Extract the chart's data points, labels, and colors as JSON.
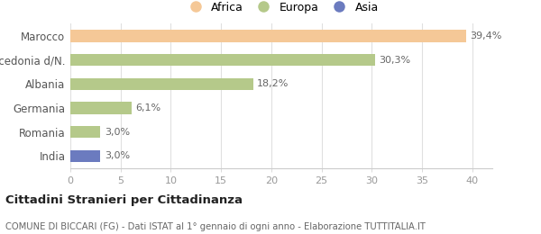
{
  "categories": [
    "India",
    "Romania",
    "Germania",
    "Albania",
    "Macedonia d/N.",
    "Marocco"
  ],
  "values": [
    3.0,
    3.0,
    6.1,
    18.2,
    30.3,
    39.4
  ],
  "labels": [
    "3,0%",
    "3,0%",
    "6,1%",
    "18,2%",
    "30,3%",
    "39,4%"
  ],
  "colors": [
    "#6b7bbf",
    "#b5c98a",
    "#b5c98a",
    "#b5c98a",
    "#b5c98a",
    "#f5c897"
  ],
  "legend_items": [
    {
      "label": "Africa",
      "color": "#f5c897"
    },
    {
      "label": "Europa",
      "color": "#b5c98a"
    },
    {
      "label": "Asia",
      "color": "#6b7bbf"
    }
  ],
  "xlim": [
    0,
    42
  ],
  "xticks": [
    0,
    5,
    10,
    15,
    20,
    25,
    30,
    35,
    40
  ],
  "title_main": "Cittadini Stranieri per Cittadinanza",
  "title_sub": "COMUNE DI BICCARI (FG) - Dati ISTAT al 1° gennaio di ogni anno - Elaborazione TUTTITALIA.IT",
  "bg_color": "#ffffff",
  "bar_height": 0.5,
  "label_fontsize": 8.0,
  "tick_label_fontsize": 8.0,
  "y_label_fontsize": 8.5
}
